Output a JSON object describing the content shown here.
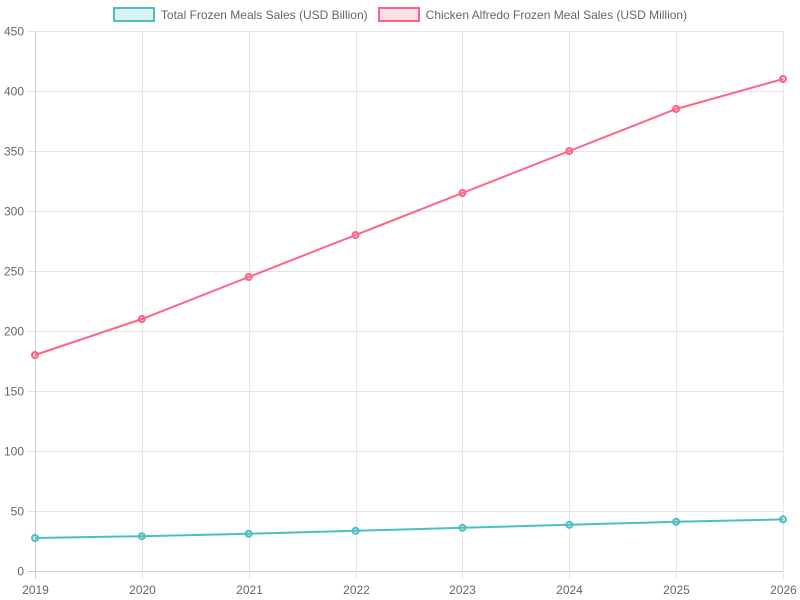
{
  "chart_data": {
    "type": "line",
    "title": "",
    "xlabel": "",
    "ylabel": "",
    "categories": [
      "2019",
      "2020",
      "2021",
      "2022",
      "2023",
      "2024",
      "2025",
      "2026"
    ],
    "series": [
      {
        "name": "Total Frozen Meals Sales (USD Billion)",
        "color": "#4BC0C0",
        "fill": "rgba(75,192,192,0.2)",
        "values": [
          27.5,
          29,
          31,
          33.5,
          36,
          38.5,
          41,
          43
        ]
      },
      {
        "name": "Chicken Alfredo Frozen Meal Sales (USD Million)",
        "color": "#FF6384",
        "fill": "rgba(255,99,132,0.2)",
        "values": [
          180,
          210,
          245,
          280,
          315,
          350,
          385,
          410
        ]
      }
    ],
    "ylim": [
      0,
      450
    ],
    "yticks": [
      0,
      50,
      100,
      150,
      200,
      250,
      300,
      350,
      400,
      450
    ],
    "grid": true,
    "legend_position": "top"
  },
  "legend": {
    "items": [
      {
        "label": "Total Frozen Meals Sales (USD Billion)"
      },
      {
        "label": "Chicken Alfredo Frozen Meal Sales (USD Million)"
      }
    ]
  }
}
